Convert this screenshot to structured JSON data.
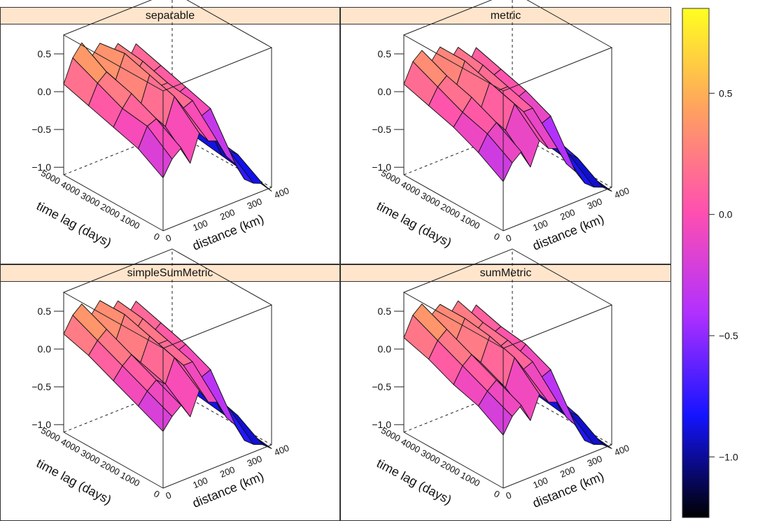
{
  "chart_data": {
    "type": "surface",
    "colormap": [
      "#000000",
      "#1414ff",
      "#b030ff",
      "#ff4fb0",
      "#ffa060",
      "#ffff20"
    ],
    "panels": [
      {
        "title": "separable",
        "zticks": [
          "0.5",
          "0.0",
          "-0.5",
          "-1.0"
        ],
        "tticks": [
          "5000",
          "4000",
          "3000",
          "2000",
          "1000",
          "0"
        ],
        "dticks": [
          "0",
          "100",
          "200",
          "300",
          "400"
        ],
        "xlabel": "distance (km)",
        "ylabel": "time lag (days)",
        "z": [
          [
            0.1,
            0.4,
            0.55,
            0.3,
            0.45,
            0.2,
            0.35,
            0.05,
            0.25,
            -0.2,
            -0.4,
            -0.55,
            -0.9
          ],
          [
            0.0,
            0.25,
            0.35,
            0.2,
            0.5,
            0.15,
            0.3,
            0.1,
            0.15,
            -0.3,
            -0.5,
            -0.7,
            -1.0
          ],
          [
            -0.1,
            0.1,
            0.25,
            0.05,
            0.4,
            0.2,
            0.2,
            0.0,
            0.05,
            -0.4,
            -0.6,
            -0.75,
            -1.05
          ],
          [
            -0.2,
            0.05,
            0.1,
            -0.05,
            0.3,
            0.1,
            0.15,
            -0.1,
            -0.05,
            -0.5,
            -0.7,
            -0.8,
            -1.1
          ],
          [
            -0.4,
            -0.2,
            -0.1,
            -0.35,
            0.0,
            -0.15,
            -0.2,
            -0.45,
            -0.6,
            -0.85,
            -0.95,
            -1.0,
            -1.15
          ]
        ]
      },
      {
        "title": "metric",
        "zticks": [
          "0.5",
          "0.0",
          "-0.5",
          "-1.0"
        ],
        "tticks": [
          "5000",
          "4000",
          "3000",
          "2000",
          "1000",
          "0"
        ],
        "dticks": [
          "0",
          "100",
          "200",
          "300",
          "400"
        ],
        "xlabel": "distance (km)",
        "ylabel": "time lag (days)",
        "z": [
          [
            0.1,
            0.35,
            0.45,
            0.25,
            0.4,
            0.15,
            0.3,
            0.0,
            0.2,
            -0.25,
            -0.45,
            -0.6,
            -0.95
          ],
          [
            0.0,
            0.2,
            0.3,
            0.1,
            0.4,
            0.1,
            0.25,
            0.05,
            0.1,
            -0.35,
            -0.55,
            -0.7,
            -1.0
          ],
          [
            -0.1,
            0.05,
            0.2,
            0.0,
            0.3,
            0.15,
            0.15,
            -0.05,
            0.0,
            -0.45,
            -0.6,
            -0.75,
            -1.05
          ],
          [
            -0.25,
            -0.05,
            0.05,
            -0.1,
            0.2,
            0.05,
            0.05,
            -0.2,
            -0.15,
            -0.6,
            -0.75,
            -0.85,
            -1.1
          ],
          [
            -0.45,
            -0.25,
            -0.15,
            -0.4,
            -0.1,
            -0.25,
            -0.3,
            -0.55,
            -0.7,
            -0.9,
            -1.0,
            -1.05,
            -1.15
          ]
        ]
      },
      {
        "title": "simpleSumMetric",
        "zticks": [
          "0.5",
          "0.0",
          "-0.5",
          "-1.0"
        ],
        "tticks": [
          "5000",
          "4000",
          "3000",
          "2000",
          "1000",
          "0"
        ],
        "dticks": [
          "0",
          "100",
          "200",
          "300",
          "400"
        ],
        "xlabel": "distance (km)",
        "ylabel": "time lag (days)",
        "z": [
          [
            0.2,
            0.4,
            0.5,
            0.3,
            0.45,
            0.2,
            0.35,
            0.1,
            0.25,
            -0.15,
            -0.35,
            -0.55,
            -0.9
          ],
          [
            0.1,
            0.25,
            0.35,
            0.15,
            0.45,
            0.15,
            0.3,
            0.05,
            0.15,
            -0.3,
            -0.5,
            -0.65,
            -1.0
          ],
          [
            -0.05,
            0.1,
            0.2,
            0.05,
            0.35,
            0.2,
            0.2,
            0.0,
            0.05,
            -0.4,
            -0.6,
            -0.75,
            -1.05
          ],
          [
            -0.2,
            -0.05,
            0.05,
            -0.05,
            0.25,
            0.1,
            0.1,
            -0.15,
            -0.1,
            -0.55,
            -0.7,
            -0.85,
            -1.1
          ],
          [
            -0.35,
            -0.2,
            -0.1,
            -0.3,
            0.0,
            -0.2,
            -0.25,
            -0.5,
            -0.65,
            -0.9,
            -1.0,
            -1.05,
            -1.15
          ]
        ]
      },
      {
        "title": "sumMetric",
        "zticks": [
          "0.5",
          "0.0",
          "-0.5",
          "-1.0"
        ],
        "tticks": [
          "5000",
          "4000",
          "3000",
          "2000",
          "1000",
          "0"
        ],
        "dticks": [
          "0",
          "100",
          "200",
          "300",
          "400"
        ],
        "xlabel": "distance (km)",
        "ylabel": "time lag (days)",
        "z": [
          [
            0.15,
            0.4,
            0.5,
            0.3,
            0.4,
            0.2,
            0.35,
            0.05,
            0.2,
            -0.2,
            -0.4,
            -0.55,
            -0.9
          ],
          [
            0.05,
            0.25,
            0.35,
            0.15,
            0.4,
            0.15,
            0.25,
            0.05,
            0.1,
            -0.3,
            -0.5,
            -0.7,
            -1.0
          ],
          [
            -0.1,
            0.1,
            0.2,
            0.05,
            0.35,
            0.15,
            0.2,
            -0.05,
            0.05,
            -0.4,
            -0.6,
            -0.75,
            -1.05
          ],
          [
            -0.2,
            -0.05,
            0.05,
            -0.1,
            0.25,
            0.05,
            0.1,
            -0.15,
            -0.1,
            -0.55,
            -0.75,
            -0.85,
            -1.1
          ],
          [
            -0.4,
            -0.2,
            -0.1,
            -0.35,
            -0.05,
            -0.2,
            -0.25,
            -0.5,
            -0.65,
            -0.9,
            -1.0,
            -1.05,
            -1.15
          ]
        ]
      }
    ],
    "colorbar": {
      "range": [
        -1.25,
        0.85
      ],
      "ticks": [
        {
          "value": 0.5,
          "label": "0.5"
        },
        {
          "value": 0.0,
          "label": "0.0"
        },
        {
          "value": -0.5,
          "label": "−0.5"
        },
        {
          "value": -1.0,
          "label": "−1.0"
        }
      ]
    }
  }
}
